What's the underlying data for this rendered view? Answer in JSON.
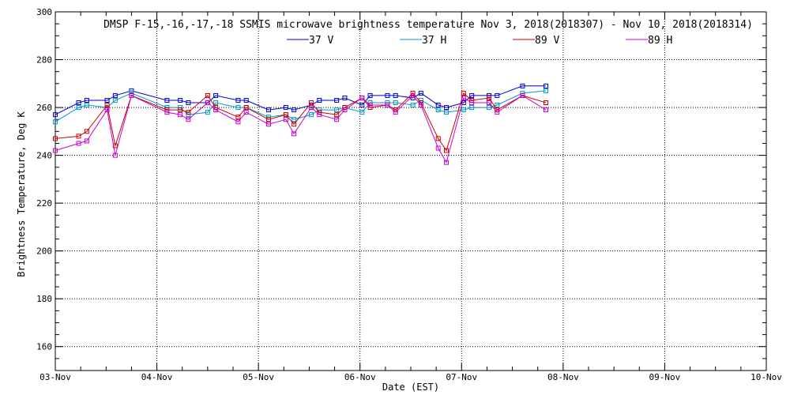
{
  "chart_data": {
    "type": "line",
    "title": "DMSP F-15,-16,-17,-18 SSMIS microwave brightness temperature Nov  3, 2018(2018307) - Nov 10, 2018(2018314)",
    "xlabel": "Date (EST)",
    "ylabel": "Brightness Temperature, Deg K",
    "xlim": [
      0,
      7
    ],
    "ylim": [
      150,
      300
    ],
    "yticks": [
      160,
      180,
      200,
      220,
      240,
      260,
      280,
      300
    ],
    "categories": [
      "03-Nov",
      "04-Nov",
      "05-Nov",
      "06-Nov",
      "07-Nov",
      "08-Nov",
      "09-Nov",
      "10-Nov"
    ],
    "grid": true,
    "legend_position": "top",
    "series": [
      {
        "name": "37 V",
        "color": "#0000cc",
        "x": [
          0.0,
          0.23,
          0.31,
          0.51,
          0.59,
          0.75,
          1.1,
          1.23,
          1.31,
          1.5,
          1.58,
          1.8,
          1.88,
          2.1,
          2.27,
          2.35,
          2.52,
          2.6,
          2.77,
          2.85,
          3.02,
          3.1,
          3.27,
          3.35,
          3.52,
          3.6,
          3.77,
          3.85,
          4.02,
          4.1,
          4.27,
          4.35,
          4.6,
          4.83
        ],
        "y": [
          257,
          262,
          263,
          263,
          265,
          267,
          263,
          263,
          262,
          262,
          265,
          263,
          263,
          259,
          260,
          259,
          261,
          263,
          263,
          264,
          261,
          265,
          265,
          265,
          264,
          266,
          261,
          260,
          262,
          265,
          265,
          265,
          269,
          269
        ]
      },
      {
        "name": "37 H",
        "color": "#0099cc",
        "x": [
          0.0,
          0.23,
          0.31,
          0.51,
          0.59,
          0.75,
          1.1,
          1.23,
          1.31,
          1.5,
          1.58,
          1.8,
          1.88,
          2.1,
          2.27,
          2.35,
          2.52,
          2.6,
          2.77,
          2.85,
          3.02,
          3.1,
          3.27,
          3.35,
          3.52,
          3.6,
          3.77,
          3.85,
          4.02,
          4.1,
          4.27,
          4.35,
          4.6,
          4.83
        ],
        "y": [
          254,
          260,
          261,
          260,
          263,
          266,
          260,
          260,
          257,
          258,
          262,
          260,
          260,
          256,
          257,
          255,
          257,
          259,
          259,
          260,
          258,
          262,
          262,
          262,
          261,
          263,
          259,
          258,
          259,
          260,
          260,
          261,
          266,
          267
        ]
      },
      {
        "name": "89 V",
        "color": "#cc0000",
        "x": [
          0.0,
          0.23,
          0.31,
          0.51,
          0.59,
          0.75,
          1.1,
          1.23,
          1.31,
          1.5,
          1.58,
          1.8,
          1.88,
          2.1,
          2.27,
          2.35,
          2.52,
          2.6,
          2.77,
          2.85,
          3.02,
          3.1,
          3.27,
          3.35,
          3.52,
          3.6,
          3.77,
          3.85,
          4.02,
          4.1,
          4.27,
          4.35,
          4.6,
          4.83
        ],
        "y": [
          247,
          248,
          250,
          261,
          244,
          265,
          259,
          259,
          258,
          265,
          260,
          256,
          260,
          255,
          257,
          253,
          262,
          258,
          257,
          260,
          264,
          260,
          261,
          259,
          266,
          262,
          247,
          242,
          266,
          263,
          264,
          259,
          265,
          262
        ]
      },
      {
        "name": "89 H",
        "color": "#cc00cc",
        "x": [
          0.0,
          0.23,
          0.31,
          0.51,
          0.59,
          0.75,
          1.1,
          1.23,
          1.31,
          1.5,
          1.58,
          1.8,
          1.88,
          2.1,
          2.27,
          2.35,
          2.52,
          2.6,
          2.77,
          2.85,
          3.02,
          3.1,
          3.27,
          3.35,
          3.52,
          3.6,
          3.77,
          3.85,
          4.02,
          4.1,
          4.27,
          4.35,
          4.6,
          4.83
        ],
        "y": [
          242,
          245,
          246,
          259,
          240,
          265,
          258,
          257,
          255,
          262,
          259,
          254,
          258,
          253,
          255,
          249,
          260,
          257,
          255,
          259,
          264,
          261,
          261,
          258,
          265,
          261,
          243,
          237,
          264,
          262,
          262,
          258,
          265,
          259
        ]
      }
    ]
  }
}
